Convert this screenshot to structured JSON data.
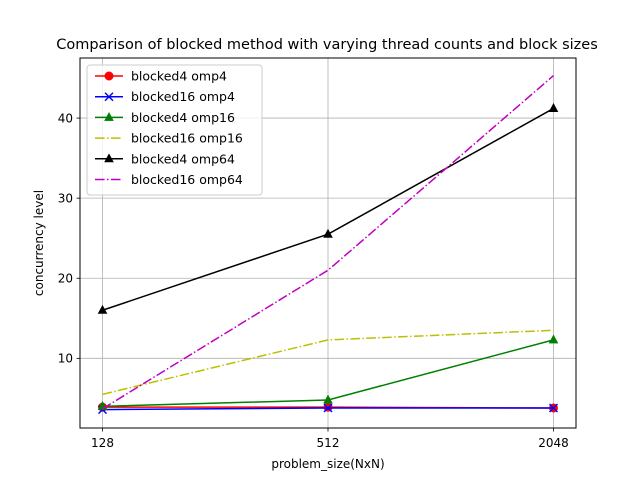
{
  "chart_data": {
    "type": "line",
    "title": "Comparison of blocked method with varying thread counts and block sizes",
    "xlabel": "problem_size(NxN)",
    "ylabel": "concurrency level",
    "categories": [
      "128",
      "512",
      "2048"
    ],
    "ylim": [
      1.3,
      47.5
    ],
    "yticks": [
      10,
      20,
      30,
      40
    ],
    "grid": true,
    "legend_position": "top-left",
    "series": [
      {
        "name": "blocked4 omp4",
        "color": "#ff0000",
        "linestyle": "solid",
        "marker": "circle",
        "values": [
          3.9,
          3.9,
          3.8
        ]
      },
      {
        "name": "blocked16 omp4",
        "color": "#0000ff",
        "linestyle": "solid",
        "marker": "x",
        "values": [
          3.6,
          3.8,
          3.8
        ]
      },
      {
        "name": "blocked4 omp16",
        "color": "#008000",
        "linestyle": "solid",
        "marker": "triangle",
        "values": [
          4.0,
          4.8,
          12.3
        ]
      },
      {
        "name": "blocked16 omp16",
        "color": "#bfbf00",
        "linestyle": "dashdot",
        "marker": "none",
        "values": [
          5.5,
          12.3,
          13.5
        ]
      },
      {
        "name": "blocked4 omp64",
        "color": "#000000",
        "linestyle": "solid",
        "marker": "triangle",
        "values": [
          16.0,
          25.5,
          41.2
        ]
      },
      {
        "name": "blocked16 omp64",
        "color": "#bf00bf",
        "linestyle": "dashdot",
        "marker": "none",
        "values": [
          3.7,
          21.0,
          45.3
        ]
      }
    ]
  }
}
